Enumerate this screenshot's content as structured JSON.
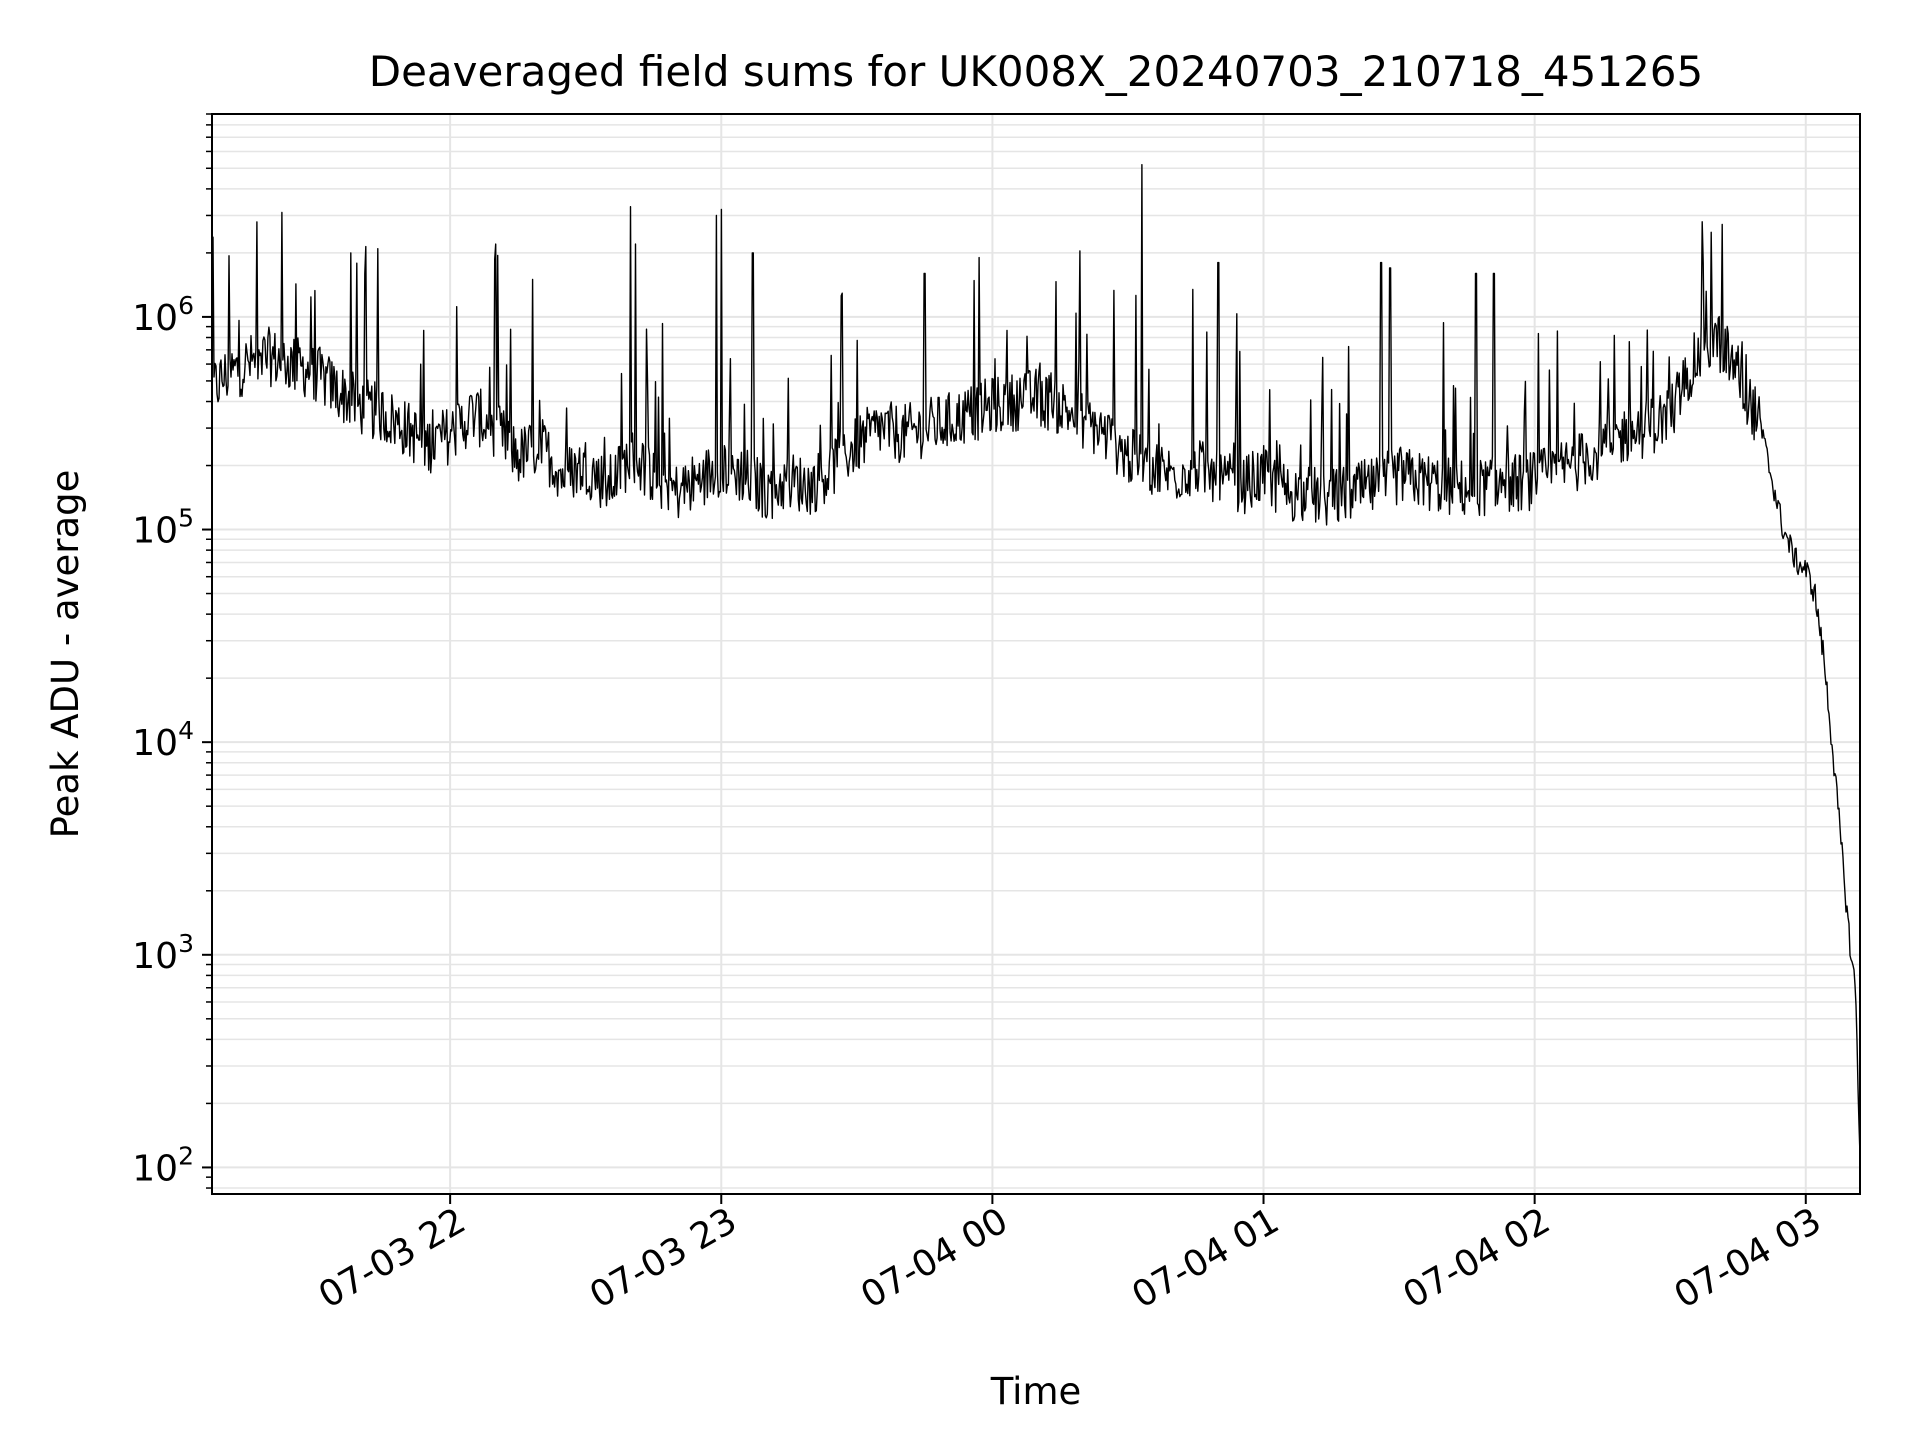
{
  "chart_data": {
    "type": "line",
    "title": "Deaveraged field sums for UK008X_20240703_210718_451265",
    "xlabel": "Time",
    "ylabel": "Peak ADU - average",
    "y_scale": "log",
    "ylim": [
      75,
      9000000
    ],
    "xlim": [
      "2024-07-03 21:07:18",
      "2024-07-04 03:12:00"
    ],
    "grid": true,
    "grid_color": "#e5e5e5",
    "line_color": "#000000",
    "x_ticks": [
      {
        "t": "2024-07-03 22:00",
        "label": "07-03 22"
      },
      {
        "t": "2024-07-03 23:00",
        "label": "07-03 23"
      },
      {
        "t": "2024-07-04 00:00",
        "label": "07-04 00"
      },
      {
        "t": "2024-07-04 01:00",
        "label": "07-04 01"
      },
      {
        "t": "2024-07-04 02:00",
        "label": "07-04 02"
      },
      {
        "t": "2024-07-04 03:00",
        "label": "07-04 03"
      }
    ],
    "y_ticks": [
      {
        "value": 100,
        "base": "10",
        "exp": "2"
      },
      {
        "value": 1000,
        "base": "10",
        "exp": "3"
      },
      {
        "value": 10000,
        "base": "10",
        "exp": "4"
      },
      {
        "value": 100000,
        "base": "10",
        "exp": "5"
      },
      {
        "value": 1000000,
        "base": "10",
        "exp": "6"
      }
    ],
    "series": [
      {
        "x": [
          "2024-07-03 21:07",
          "2024-07-03 21:10",
          "2024-07-03 21:15",
          "2024-07-03 21:20",
          "2024-07-03 21:25",
          "2024-07-03 21:30",
          "2024-07-03 21:35",
          "2024-07-03 21:40",
          "2024-07-03 21:45",
          "2024-07-03 21:50",
          "2024-07-03 21:55",
          "2024-07-03 22:00",
          "2024-07-03 22:05",
          "2024-07-03 22:10",
          "2024-07-03 22:15",
          "2024-07-03 22:20",
          "2024-07-03 22:25",
          "2024-07-03 22:30",
          "2024-07-03 22:35",
          "2024-07-03 22:40",
          "2024-07-03 22:45",
          "2024-07-03 22:50",
          "2024-07-03 22:55",
          "2024-07-03 23:00",
          "2024-07-03 23:05",
          "2024-07-03 23:10",
          "2024-07-03 23:15",
          "2024-07-03 23:20",
          "2024-07-03 23:25",
          "2024-07-03 23:30",
          "2024-07-03 23:35",
          "2024-07-03 23:40",
          "2024-07-03 23:45",
          "2024-07-03 23:50",
          "2024-07-03 23:55",
          "2024-07-04 00:00",
          "2024-07-04 00:05",
          "2024-07-04 00:10",
          "2024-07-04 00:15",
          "2024-07-04 00:20",
          "2024-07-04 00:25",
          "2024-07-04 00:30",
          "2024-07-04 00:35",
          "2024-07-04 00:40",
          "2024-07-04 00:45",
          "2024-07-04 00:50",
          "2024-07-04 00:55",
          "2024-07-04 01:00",
          "2024-07-04 01:05",
          "2024-07-04 01:10",
          "2024-07-04 01:15",
          "2024-07-04 01:20",
          "2024-07-04 01:25",
          "2024-07-04 01:30",
          "2024-07-04 01:35",
          "2024-07-04 01:40",
          "2024-07-04 01:45",
          "2024-07-04 01:50",
          "2024-07-04 01:55",
          "2024-07-04 02:00",
          "2024-07-04 02:05",
          "2024-07-04 02:10",
          "2024-07-04 02:15",
          "2024-07-04 02:20",
          "2024-07-04 02:25",
          "2024-07-04 02:30",
          "2024-07-04 02:35",
          "2024-07-04 02:40",
          "2024-07-04 02:45",
          "2024-07-04 02:50",
          "2024-07-04 02:55",
          "2024-07-04 02:58",
          "2024-07-04 03:00",
          "2024-07-04 03:02",
          "2024-07-04 03:04",
          "2024-07-04 03:06",
          "2024-07-04 03:08",
          "2024-07-04 03:10",
          "2024-07-04 03:11",
          "2024-07-04 03:12"
        ],
        "y": [
          450000,
          520000,
          600000,
          650000,
          600000,
          550000,
          450000,
          380000,
          350000,
          300000,
          250000,
          280000,
          350000,
          300000,
          220000,
          250000,
          180000,
          200000,
          160000,
          220000,
          180000,
          150000,
          170000,
          200000,
          180000,
          150000,
          170000,
          160000,
          200000,
          250000,
          300000,
          280000,
          300000,
          320000,
          350000,
          380000,
          400000,
          420000,
          380000,
          330000,
          280000,
          220000,
          200000,
          180000,
          200000,
          170000,
          160000,
          180000,
          150000,
          145000,
          140000,
          150000,
          160000,
          180000,
          170000,
          160000,
          155000,
          160000,
          165000,
          170000,
          190000,
          210000,
          240000,
          280000,
          300000,
          350000,
          600000,
          800000,
          550000,
          300000,
          100000,
          70000,
          65000,
          50000,
          25000,
          9000,
          3000,
          1000,
          700,
          120
        ],
        "spikes": [
          {
            "t": "2024-07-03 21:38",
            "v": 2000000
          },
          {
            "t": "2024-07-03 22:10",
            "v": 2200000
          },
          {
            "t": "2024-07-03 22:40",
            "v": 3300000
          },
          {
            "t": "2024-07-03 22:41",
            "v": 2200000
          },
          {
            "t": "2024-07-03 22:59",
            "v": 3000000
          },
          {
            "t": "2024-07-03 23:00",
            "v": 3200000
          },
          {
            "t": "2024-07-03 23:07",
            "v": 2000000
          },
          {
            "t": "2024-07-03 23:45",
            "v": 1600000
          },
          {
            "t": "2024-07-03 23:57",
            "v": 1900000
          },
          {
            "t": "2024-07-04 00:33",
            "v": 5200000
          },
          {
            "t": "2024-07-04 00:50",
            "v": 1800000
          },
          {
            "t": "2024-07-04 01:26",
            "v": 1800000
          },
          {
            "t": "2024-07-04 01:28",
            "v": 1700000
          },
          {
            "t": "2024-07-04 01:47",
            "v": 1600000
          },
          {
            "t": "2024-07-04 01:51",
            "v": 1600000
          },
          {
            "t": "2024-07-04 02:37",
            "v": 2800000
          },
          {
            "t": "2024-07-04 02:39",
            "v": 2500000
          }
        ]
      }
    ]
  }
}
